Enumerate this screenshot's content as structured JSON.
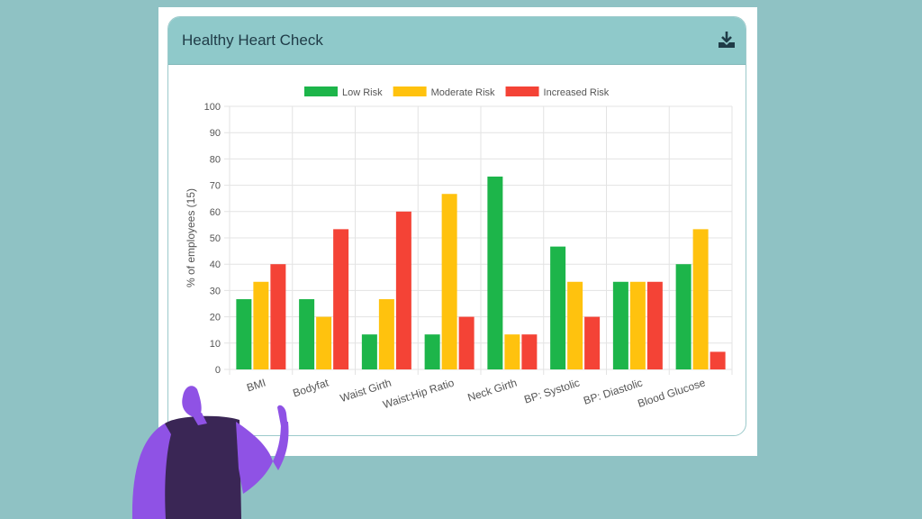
{
  "card": {
    "title": "Healthy Heart Check",
    "download_icon": "download-icon"
  },
  "colors": {
    "background": "#8fc2c4",
    "header": "#8fc9ca",
    "low": "#1db54a",
    "moderate": "#ffc20e",
    "increased": "#f44336"
  },
  "chart_data": {
    "type": "bar",
    "categories": [
      "BMI",
      "Bodyfat",
      "Waist Girth",
      "Waist:Hip Ratio",
      "Neck Girth",
      "BP: Systolic",
      "BP: Diastolic",
      "Blood Glucose"
    ],
    "series": [
      {
        "name": "Low Risk",
        "color": "#1db54a",
        "values": [
          26.7,
          26.7,
          13.3,
          13.3,
          73.3,
          46.7,
          33.3,
          40
        ]
      },
      {
        "name": "Moderate Risk",
        "color": "#ffc20e",
        "values": [
          33.3,
          20,
          26.7,
          66.7,
          13.3,
          33.3,
          33.3,
          53.3
        ]
      },
      {
        "name": "Increased Risk",
        "color": "#f44336",
        "values": [
          40,
          53.3,
          60,
          20,
          13.3,
          20,
          33.3,
          6.7
        ]
      }
    ],
    "ylabel": "% of employees (15)",
    "xlabel": "",
    "ylim": [
      0,
      100
    ],
    "yticks": [
      0,
      10,
      20,
      30,
      40,
      50,
      60,
      70,
      80,
      90,
      100
    ],
    "legend_position": "top-center",
    "grid": true
  }
}
